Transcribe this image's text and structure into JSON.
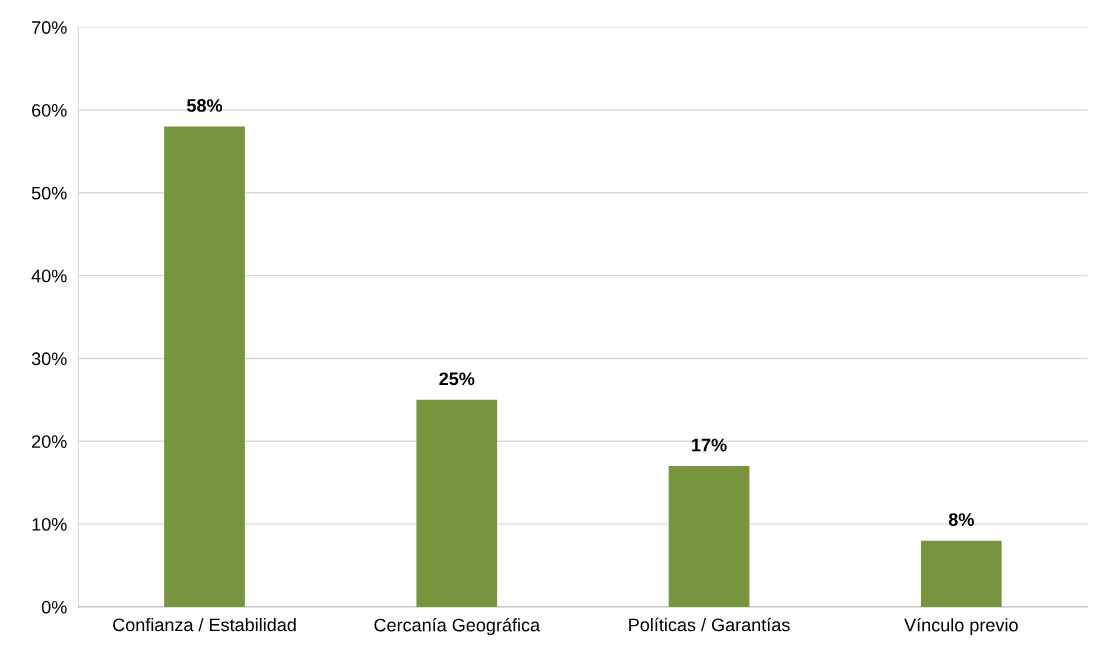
{
  "chart_data": {
    "type": "bar",
    "categories": [
      "Confianza / Estabilidad",
      "Cercanía Geográfica",
      "Políticas / Garantías",
      "Vínculo previo"
    ],
    "values": [
      58,
      25,
      17,
      8
    ],
    "value_labels": [
      "58%",
      "25%",
      "17%",
      "8%"
    ],
    "color": "#77953c",
    "ylim": [
      0,
      70
    ],
    "yticks": [
      {
        "value": 0,
        "label": "0%"
      },
      {
        "value": 10,
        "label": "10%"
      },
      {
        "value": 20,
        "label": "20%"
      },
      {
        "value": 30,
        "label": "30%"
      },
      {
        "value": 40,
        "label": "40%"
      },
      {
        "value": 50,
        "label": "50%"
      },
      {
        "value": 60,
        "label": "60%"
      },
      {
        "value": 70,
        "label": "70%"
      }
    ],
    "grid": "y",
    "legend": false
  }
}
